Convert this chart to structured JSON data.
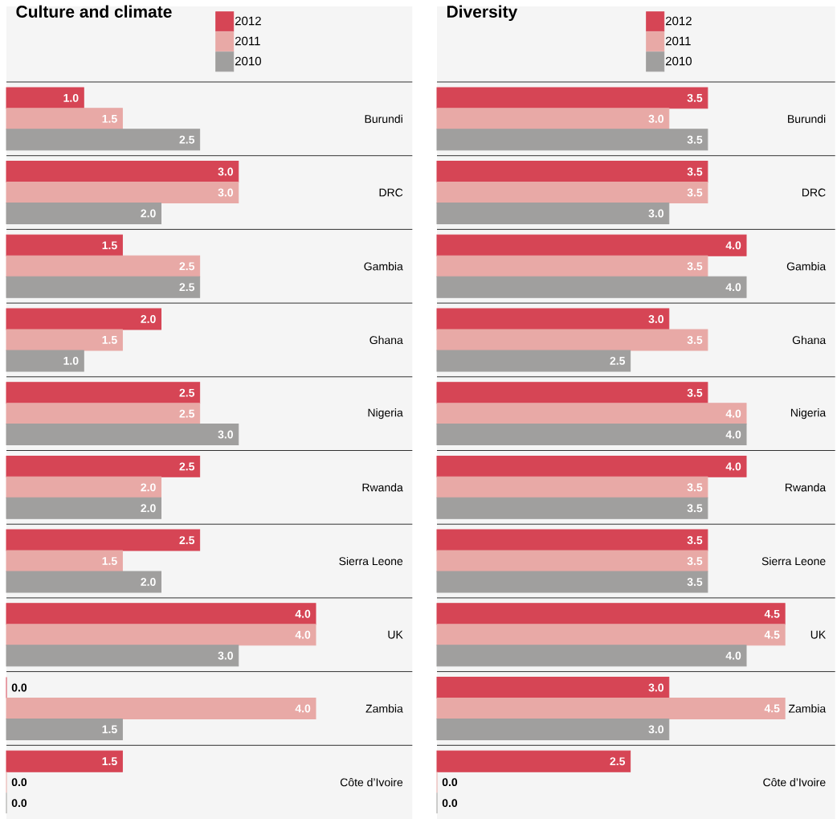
{
  "chart_data": [
    {
      "type": "bar",
      "orientation": "horizontal",
      "title": "Culture and climate",
      "legend": "top",
      "tick_labels": "y",
      "xlim": [
        0,
        5.25
      ],
      "categories": [
        "Burundi",
        "DRC",
        "Gambia",
        "Ghana",
        "Nigeria",
        "Rwanda",
        "Sierra Leone",
        "UK",
        "Zambia",
        "Côte d’Ivoire"
      ],
      "series": [
        {
          "name": "2012",
          "color": "#d64555",
          "values": [
            1,
            3,
            1.5,
            2,
            2.5,
            2.5,
            2.5,
            4,
            0,
            1.5
          ],
          "value_labels": [
            "1.0",
            "3.0",
            "1.5",
            "2.0",
            "2.5",
            "2.5",
            "2.5",
            "4.0",
            "0.0",
            "1.5"
          ]
        },
        {
          "name": "2011",
          "color": "#e8a9a6",
          "values": [
            1.5,
            3,
            2.5,
            1.5,
            2.5,
            2,
            1.5,
            4,
            4,
            0
          ],
          "value_labels": [
            "1.5",
            "3.0",
            "2.5",
            "1.5",
            "2.5",
            "2.0",
            "1.5",
            "4.0",
            "4.0",
            "0.0"
          ]
        },
        {
          "name": "2010",
          "color": "#a09f9e",
          "values": [
            2.5,
            2,
            2.5,
            1,
            3,
            2,
            2,
            3,
            1.5,
            0
          ],
          "value_labels": [
            "2.5",
            "2.0",
            "2.5",
            "1.0",
            "3.0",
            "2.0",
            "2.0",
            "3.0",
            "1.5",
            "0.0"
          ]
        }
      ]
    },
    {
      "type": "bar",
      "orientation": "horizontal",
      "title": "Diversity",
      "legend": "top",
      "tick_labels": "y",
      "xlim": [
        0,
        5.15
      ],
      "categories": [
        "Burundi",
        "DRC",
        "Gambia",
        "Ghana",
        "Nigeria",
        "Rwanda",
        "Sierra Leone",
        "UK",
        "Zambia",
        "Côte d’Ivoire"
      ],
      "series": [
        {
          "name": "2012",
          "color": "#d64555",
          "values": [
            3.5,
            3.5,
            4,
            3,
            3.5,
            4,
            3.5,
            4.5,
            3,
            2.5
          ],
          "value_labels": [
            "3.5",
            "3.5",
            "4.0",
            "3.0",
            "3.5",
            "4.0",
            "3.5",
            "4.5",
            "3.0",
            "2.5"
          ]
        },
        {
          "name": "2011",
          "color": "#e8a9a6",
          "values": [
            3,
            3.5,
            3.5,
            3.5,
            4,
            3.5,
            3.5,
            4.5,
            4.5,
            0
          ],
          "value_labels": [
            "3.0",
            "3.5",
            "3.5",
            "3.5",
            "4.0",
            "3.5",
            "3.5",
            "4.5",
            "4.5",
            "0.0"
          ]
        },
        {
          "name": "2010",
          "color": "#a09f9e",
          "values": [
            3.5,
            3,
            4,
            2.5,
            4,
            3.5,
            3.5,
            4,
            3,
            0
          ],
          "value_labels": [
            "3.5",
            "3.0",
            "4.0",
            "2.5",
            "4.0",
            "3.5",
            "3.5",
            "4.0",
            "3.0",
            "0.0"
          ]
        }
      ]
    }
  ]
}
